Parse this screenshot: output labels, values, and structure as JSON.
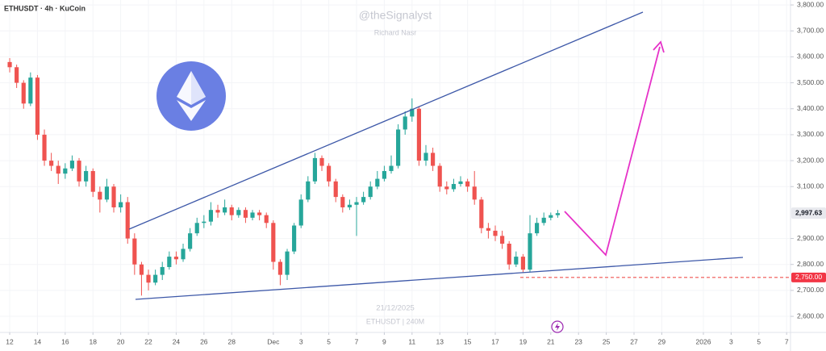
{
  "chart_data": {
    "type": "candlestick",
    "title": "ETHUSDT · 4h · KuCoin",
    "watermark": "@theSignalyst",
    "watermark_subtitle": "Richard Nasr",
    "date_stamp": "21/12/2025",
    "symbol_stamp": "ETHUSDT | 240M",
    "up_color": "#26a69a",
    "down_color": "#ef5350",
    "xlim": [
      -0.7,
      56.28
    ],
    "ylim": [
      2538,
      3819
    ],
    "xticks": [
      {
        "value": 0,
        "label": "12"
      },
      {
        "value": 2,
        "label": "14"
      },
      {
        "value": 4,
        "label": "16"
      },
      {
        "value": 6,
        "label": "18"
      },
      {
        "value": 8,
        "label": "20"
      },
      {
        "value": 10,
        "label": "22"
      },
      {
        "value": 12,
        "label": "24"
      },
      {
        "value": 14,
        "label": "26"
      },
      {
        "value": 16,
        "label": "28"
      },
      {
        "value": 19,
        "label": "Dec"
      },
      {
        "value": 21,
        "label": "3"
      },
      {
        "value": 23,
        "label": "5"
      },
      {
        "value": 25,
        "label": "7"
      },
      {
        "value": 27,
        "label": "9"
      },
      {
        "value": 29,
        "label": "11"
      },
      {
        "value": 31,
        "label": "13"
      },
      {
        "value": 33,
        "label": "15"
      },
      {
        "value": 35,
        "label": "17"
      },
      {
        "value": 37,
        "label": "19"
      },
      {
        "value": 39,
        "label": "21"
      },
      {
        "value": 41,
        "label": "23"
      },
      {
        "value": 43,
        "label": "25"
      },
      {
        "value": 45,
        "label": "27"
      },
      {
        "value": 47,
        "label": "29"
      },
      {
        "value": 50,
        "label": "2026"
      },
      {
        "value": 52,
        "label": "3"
      },
      {
        "value": 54,
        "label": "5"
      },
      {
        "value": 56,
        "label": "7"
      }
    ],
    "yticks": [
      {
        "value": 3800,
        "label": "3,800.00"
      },
      {
        "value": 3700,
        "label": "3,700.00"
      },
      {
        "value": 3600,
        "label": "3,600.00"
      },
      {
        "value": 3500,
        "label": "3,500.00"
      },
      {
        "value": 3400,
        "label": "3,400.00"
      },
      {
        "value": 3300,
        "label": "3,300.00"
      },
      {
        "value": 3200,
        "label": "3,200.00"
      },
      {
        "value": 3100,
        "label": "3,100.00"
      },
      {
        "value": 2900,
        "label": "2,900.00"
      },
      {
        "value": 2800,
        "label": "2,800.00"
      },
      {
        "value": 2700,
        "label": "2,700.00"
      },
      {
        "value": 2600,
        "label": "2,600.00"
      }
    ],
    "last_price": {
      "value": 2997.63,
      "label": "2,997.63"
    },
    "alert_level": {
      "value": 2750,
      "label": "2,750.00"
    },
    "x": [
      0,
      0.5,
      1,
      1.5,
      2,
      2.5,
      3,
      3.5,
      4,
      4.5,
      5,
      5.5,
      6,
      6.5,
      7,
      7.5,
      8,
      8.5,
      9,
      9.5,
      10,
      10.5,
      11,
      11.5,
      12,
      12.5,
      13,
      13.5,
      14,
      14.5,
      15,
      15.5,
      16,
      16.5,
      17,
      17.5,
      18,
      18.5,
      19,
      19.5,
      20,
      20.5,
      21,
      21.5,
      22,
      22.5,
      23,
      23.5,
      24,
      24.5,
      25,
      25.5,
      26,
      26.5,
      27,
      27.5,
      28,
      28.5,
      29,
      29.5,
      30,
      30.5,
      31,
      31.5,
      32,
      32.5,
      33,
      33.5,
      34,
      34.5,
      35,
      35.5,
      36,
      36.5,
      37,
      37.5,
      38,
      38.5,
      39,
      39.5
    ],
    "open": [
      3580,
      3560,
      3500,
      3420,
      3520,
      3300,
      3200,
      3180,
      3150,
      3170,
      3200,
      3120,
      3160,
      3080,
      3050,
      3100,
      3020,
      3040,
      2900,
      2800,
      2760,
      2730,
      2760,
      2790,
      2830,
      2820,
      2860,
      2920,
      2960,
      2965,
      3010,
      3000,
      3020,
      2990,
      3010,
      2980,
      3000,
      2990,
      2960,
      2810,
      2760,
      2850,
      2950,
      3050,
      3120,
      3210,
      3180,
      3120,
      3060,
      3020,
      3030,
      3040,
      3060,
      3100,
      3130,
      3160,
      3180,
      3320,
      3370,
      3400,
      3200,
      3230,
      3180,
      3100,
      3090,
      3110,
      3120,
      3100,
      3050,
      2940,
      2930,
      2910,
      2880,
      2800,
      2830,
      2780,
      2920,
      2960,
      2980,
      2990
    ],
    "high": [
      3595,
      3570,
      3510,
      3540,
      3530,
      3320,
      3230,
      3200,
      3190,
      3220,
      3210,
      3180,
      3170,
      3100,
      3130,
      3110,
      3070,
      3060,
      2920,
      2810,
      2780,
      2780,
      2810,
      2850,
      2850,
      2880,
      2940,
      2980,
      2990,
      3040,
      3030,
      3050,
      3030,
      3020,
      3020,
      3010,
      3010,
      3000,
      2970,
      2820,
      2860,
      2960,
      3070,
      3140,
      3230,
      3220,
      3190,
      3130,
      3070,
      3050,
      3060,
      3080,
      3120,
      3160,
      3180,
      3220,
      3340,
      3390,
      3440,
      3410,
      3260,
      3250,
      3190,
      3120,
      3130,
      3140,
      3130,
      3160,
      3060,
      2960,
      2950,
      2930,
      2890,
      2850,
      2840,
      2990,
      2980,
      3000,
      3000,
      3010
    ],
    "low": [
      3540,
      3480,
      3400,
      3410,
      3280,
      3180,
      3160,
      3110,
      3130,
      3160,
      3100,
      3100,
      3060,
      3000,
      3040,
      3000,
      3000,
      2880,
      2760,
      2680,
      2700,
      2720,
      2740,
      2780,
      2800,
      2810,
      2850,
      2910,
      2940,
      2950,
      2980,
      2990,
      2970,
      2980,
      2960,
      2970,
      2970,
      2940,
      2780,
      2720,
      2740,
      2840,
      2940,
      3040,
      3110,
      3160,
      3100,
      3040,
      3000,
      3010,
      2910,
      3030,
      3050,
      3090,
      3120,
      3150,
      3170,
      3300,
      3350,
      3180,
      3180,
      3160,
      3080,
      3070,
      3080,
      3100,
      3080,
      3030,
      2920,
      2900,
      2890,
      2860,
      2780,
      2790,
      2770,
      2770,
      2910,
      2950,
      2970,
      2980
    ],
    "close": [
      3560,
      3500,
      3420,
      3520,
      3300,
      3200,
      3180,
      3150,
      3170,
      3200,
      3120,
      3160,
      3080,
      3050,
      3100,
      3020,
      3040,
      2900,
      2800,
      2760,
      2730,
      2760,
      2790,
      2830,
      2820,
      2860,
      2920,
      2960,
      2965,
      3010,
      3000,
      3020,
      2990,
      3010,
      2980,
      3000,
      2990,
      2960,
      2810,
      2760,
      2850,
      2950,
      3050,
      3120,
      3210,
      3180,
      3120,
      3060,
      3020,
      3030,
      3040,
      3060,
      3100,
      3130,
      3160,
      3180,
      3320,
      3370,
      3400,
      3200,
      3230,
      3180,
      3100,
      3090,
      3110,
      3120,
      3100,
      3050,
      2940,
      2930,
      2910,
      2880,
      2800,
      2830,
      2780,
      2920,
      2960,
      2980,
      2990,
      2997.63
    ]
  }
}
